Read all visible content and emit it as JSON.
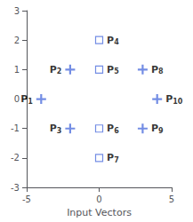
{
  "chart_data": {
    "type": "scatter",
    "xlabel": "Input Vectors",
    "xlim": [
      -5,
      5
    ],
    "ylim": [
      -3,
      3
    ],
    "xticks": [
      -5,
      0,
      5
    ],
    "yticks": [
      -3,
      -2,
      -1,
      0,
      1,
      2,
      3
    ],
    "grid": false,
    "series": [
      {
        "marker": "square",
        "x": [
          0,
          0,
          0,
          0
        ],
        "values": [
          2,
          1,
          -1,
          -2
        ],
        "labels": [
          "P4",
          "P5",
          "P6",
          "P7"
        ]
      },
      {
        "marker": "plus",
        "x": [
          -4,
          -2,
          -2,
          3,
          3,
          4
        ],
        "values": [
          0,
          1,
          -1,
          1,
          -1,
          0
        ],
        "labels": [
          "P1",
          "P2",
          "P3",
          "P8",
          "P9",
          "P10"
        ]
      }
    ]
  }
}
